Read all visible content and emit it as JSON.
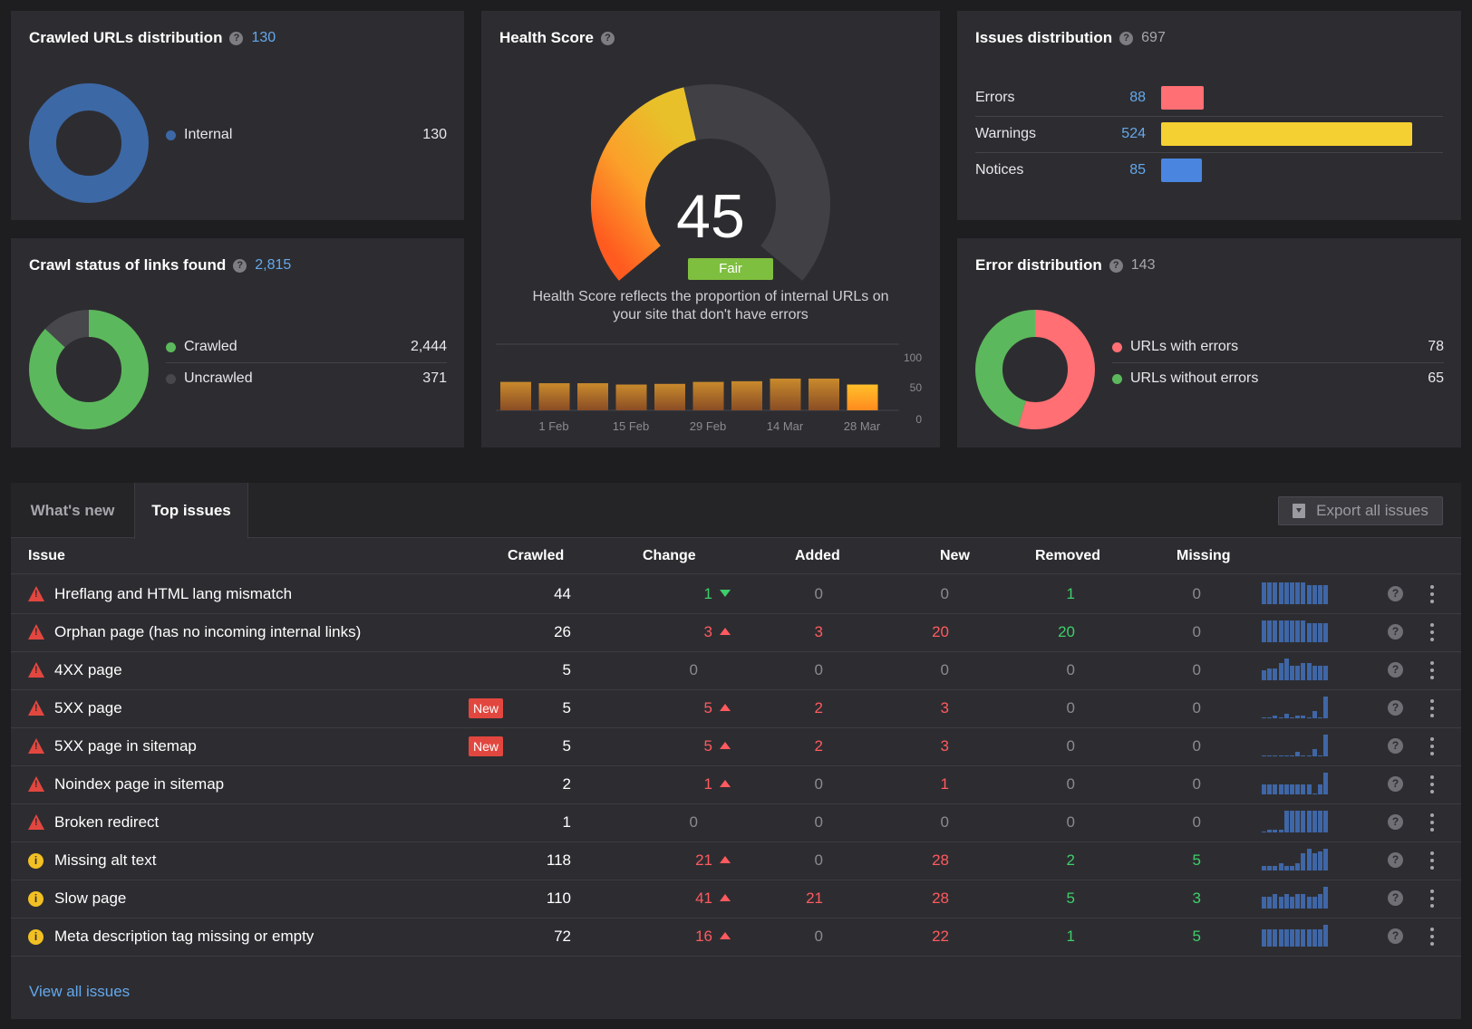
{
  "colors": {
    "background": "#1e1e21",
    "card": "#2d2d31",
    "link": "#64a8ec",
    "error": "#ff6f73",
    "warning": "#f5d033",
    "notice": "#4a86e0",
    "crawled": "#5cb85c",
    "uncrawled": "#47474c",
    "internal": "#3d68a6",
    "gauge_fill": "#f2c023",
    "gauge_track": "#404045"
  },
  "crawled_urls": {
    "title": "Crawled URLs distribution",
    "count": "130",
    "legend": [
      {
        "label": "Internal",
        "value": "130",
        "color": "#3d68a6"
      }
    ]
  },
  "crawl_status": {
    "title": "Crawl status of links found",
    "count": "2,815",
    "legend": [
      {
        "label": "Crawled",
        "value": "2,444",
        "color": "#5cb85c"
      },
      {
        "label": "Uncrawled",
        "value": "371",
        "color": "#47474c"
      }
    ]
  },
  "health": {
    "title": "Health Score",
    "score": "45",
    "score_fraction": 0.45,
    "rating": "Fair",
    "caption": "Health Score reflects the proportion of internal URLs on your site that don't have errors",
    "chart_ticks": [
      "100",
      "50",
      "0"
    ],
    "chart_labels": [
      "1 Feb",
      "15 Feb",
      "29 Feb",
      "14 Mar",
      "28 Mar"
    ]
  },
  "chart_data": {
    "type": "bar",
    "title": "",
    "xlabel": "",
    "ylabel": "",
    "ylim": [
      0,
      100
    ],
    "categories": [
      "",
      "1 Feb",
      "",
      "15 Feb",
      "",
      "29 Feb",
      "",
      "14 Mar",
      "",
      "28 Mar"
    ],
    "values": [
      43,
      41,
      41,
      39,
      40,
      43,
      44,
      48,
      48,
      39
    ]
  },
  "issues_dist": {
    "title": "Issues distribution",
    "count": "697",
    "rows": [
      {
        "label": "Errors",
        "value": "88",
        "share": 0.168,
        "color": "#ff6f73"
      },
      {
        "label": "Warnings",
        "value": "524",
        "share": 1.0,
        "color": "#f5d033"
      },
      {
        "label": "Notices",
        "value": "85",
        "share": 0.162,
        "color": "#4a86e0"
      }
    ]
  },
  "error_dist": {
    "title": "Error distribution",
    "count": "143",
    "legend": [
      {
        "label": "URLs with errors",
        "value": "78",
        "color": "#ff6f73"
      },
      {
        "label": "URLs without errors",
        "value": "65",
        "color": "#5cb85c"
      }
    ]
  },
  "tabs": {
    "whats_new": "What's new",
    "top_issues": "Top issues",
    "export": "Export all issues"
  },
  "table": {
    "headers": {
      "issue": "Issue",
      "crawled": "Crawled",
      "change": "Change",
      "added": "Added",
      "new": "New",
      "removed": "Removed",
      "missing": "Missing"
    },
    "new_badge": "New",
    "rows": [
      {
        "icon": "error",
        "issue": "Hreflang and HTML lang mismatch",
        "is_new": false,
        "crawled": "44",
        "change": "1",
        "trend": "down",
        "added": "0",
        "new": "0",
        "removed": "1",
        "missing": "0",
        "spark": [
          9,
          9,
          9,
          9,
          9,
          9,
          9,
          9,
          8,
          8,
          8,
          8
        ]
      },
      {
        "icon": "error",
        "issue": "Orphan page (has no incoming internal links)",
        "is_new": false,
        "crawled": "26",
        "change": "3",
        "trend": "up",
        "added": "3",
        "new": "20",
        "removed": "20",
        "missing": "0",
        "spark": [
          9,
          9,
          9,
          9,
          9,
          9,
          9,
          9,
          8,
          8,
          8,
          8
        ]
      },
      {
        "icon": "error",
        "issue": "4XX page",
        "is_new": false,
        "crawled": "5",
        "change": "0",
        "trend": "none",
        "added": "0",
        "new": "0",
        "removed": "0",
        "missing": "0",
        "spark": [
          4,
          5,
          5,
          7,
          9,
          6,
          6,
          7,
          7,
          6,
          6,
          6
        ]
      },
      {
        "icon": "error",
        "issue": "5XX page",
        "is_new": true,
        "crawled": "5",
        "change": "5",
        "trend": "up",
        "added": "2",
        "new": "3",
        "removed": "0",
        "missing": "0",
        "spark": [
          0,
          0,
          1,
          0,
          2,
          0,
          1,
          1,
          0,
          3,
          0,
          9
        ]
      },
      {
        "icon": "error",
        "issue": "5XX page in sitemap",
        "is_new": true,
        "crawled": "5",
        "change": "5",
        "trend": "up",
        "added": "2",
        "new": "3",
        "removed": "0",
        "missing": "0",
        "spark": [
          0,
          0,
          0,
          0,
          0,
          0,
          2,
          0,
          0,
          3,
          0,
          9
        ]
      },
      {
        "icon": "error",
        "issue": "Noindex page in sitemap",
        "is_new": false,
        "crawled": "2",
        "change": "1",
        "trend": "up",
        "added": "0",
        "new": "1",
        "removed": "0",
        "missing": "0",
        "spark": [
          4,
          4,
          4,
          4,
          4,
          4,
          4,
          4,
          4,
          0,
          4,
          9
        ]
      },
      {
        "icon": "error",
        "issue": "Broken redirect",
        "is_new": false,
        "crawled": "1",
        "change": "0",
        "trend": "none",
        "added": "0",
        "new": "0",
        "removed": "0",
        "missing": "0",
        "spark": [
          0,
          1,
          1,
          1,
          9,
          9,
          9,
          9,
          9,
          9,
          9,
          9
        ]
      },
      {
        "icon": "notice",
        "issue": "Missing alt text",
        "is_new": false,
        "crawled": "118",
        "change": "21",
        "trend": "up",
        "added": "0",
        "new": "28",
        "removed": "2",
        "missing": "5",
        "spark": [
          2,
          2,
          2,
          3,
          2,
          2,
          3,
          7,
          9,
          7,
          8,
          9
        ]
      },
      {
        "icon": "notice",
        "issue": "Slow page",
        "is_new": false,
        "crawled": "110",
        "change": "41",
        "trend": "up",
        "added": "21",
        "new": "28",
        "removed": "5",
        "missing": "3",
        "spark": [
          5,
          5,
          6,
          5,
          6,
          5,
          6,
          6,
          5,
          5,
          6,
          9
        ]
      },
      {
        "icon": "notice",
        "issue": "Meta description tag missing or empty",
        "is_new": false,
        "crawled": "72",
        "change": "16",
        "trend": "up",
        "added": "0",
        "new": "22",
        "removed": "1",
        "missing": "5",
        "spark": [
          7,
          7,
          7,
          7,
          7,
          7,
          7,
          7,
          7,
          7,
          7,
          9
        ]
      }
    ],
    "view_all": "View all issues"
  }
}
